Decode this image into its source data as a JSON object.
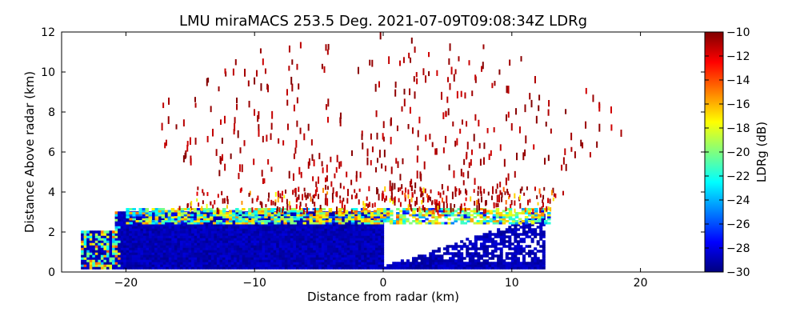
{
  "chart_data": {
    "type": "heatmap",
    "title": "LMU miraMACS 253.5 Deg. 2021-07-09T09:08:34Z  LDRg",
    "xlabel": "Distance from radar (km)",
    "ylabel": "Distance Above radar  (km)",
    "xlim": [
      -25,
      25
    ],
    "ylim": [
      0,
      12
    ],
    "x_ticks": [
      -20,
      -10,
      0,
      10,
      20
    ],
    "y_ticks": [
      0,
      2,
      4,
      6,
      8,
      10,
      12
    ],
    "colorbar": {
      "label": "LDRg (dB)",
      "range": [
        -30,
        -10
      ],
      "ticks": [
        -30,
        -28,
        -26,
        -24,
        -22,
        -20,
        -18,
        -16,
        -14,
        -12,
        -10
      ],
      "colormap": "jet"
    },
    "scan": {
      "azimuth_deg": 253.5,
      "dense_layer_top_km": 3.0,
      "melting_layer_km": [
        2.4,
        3.2
      ],
      "sparse_echo_max_km": 12
    }
  }
}
